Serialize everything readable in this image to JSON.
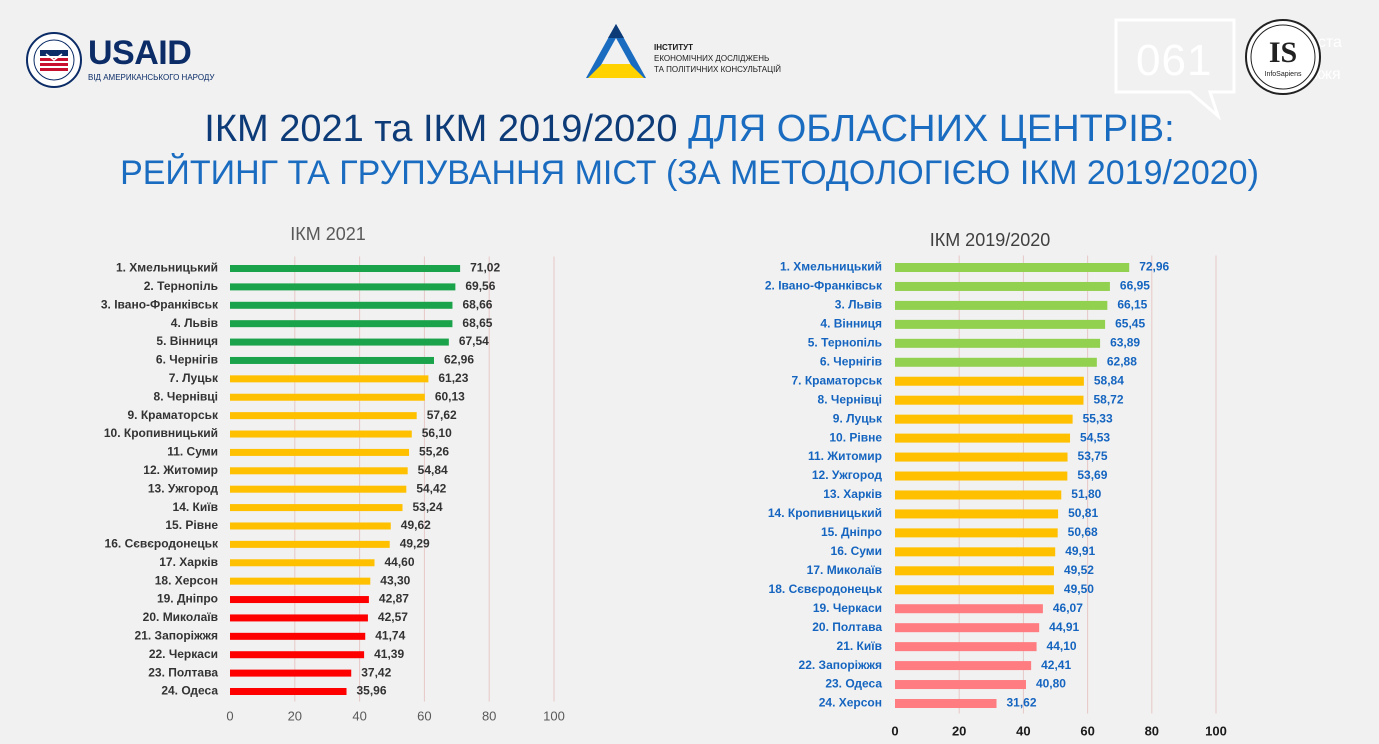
{
  "header": {
    "usaid": {
      "name": "USAID",
      "subtitle": "ВІД АМЕРИКАНСЬКОГО НАРОДУ"
    },
    "institute": {
      "line1": "ІНСТИТУТ",
      "line2": "ЕКОНОМІЧНИХ ДОСЛІДЖЕНЬ",
      "line3": "ТА ПОЛІТИЧНИХ КОНСУЛЬТАЦІЙ"
    },
    "watermark": {
      "code": "061",
      "city_line1": "Сайт міста",
      "city_line2": "Запоріжжя"
    },
    "infosapiens": {
      "mark": "IS",
      "name": "InfoSapiens"
    }
  },
  "title": {
    "line1_part1": "ІКМ 2021 та ІКМ 2019/2020 ",
    "line1_part2": "ДЛЯ ОБЛАСНИХ ЦЕНТРІВ:",
    "line2": "РЕЙТИНГ ТА ГРУПУВАННЯ МІСТ (ЗА МЕТОДОЛОГІЄЮ ІКМ 2019/2020)"
  },
  "colors": {
    "green_2021": "#1aa34a",
    "yellow_2021": "#ffc000",
    "red_2021": "#ff0000",
    "green_1920": "#92d050",
    "yellow_1920": "#ffc000",
    "red_1920": "#ff7c80",
    "label_2021": "#333333",
    "label_1920": "#1565c0",
    "grid": "#e8c8c8"
  },
  "chart_data": [
    {
      "type": "bar",
      "orientation": "horizontal",
      "title": "ІКМ 2021",
      "xlim": [
        0,
        100
      ],
      "xticks": [
        0,
        20,
        40,
        60,
        80,
        100
      ],
      "grid": true,
      "categories": [
        "1. Хмельницький",
        "2. Тернопіль",
        "3. Івано-Франківськ",
        "4. Львів",
        "5. Вінниця",
        "6. Чернігів",
        "7. Луцьк",
        "8. Чернівці",
        "9. Краматорськ",
        "10. Кропивницький",
        "11. Суми",
        "12. Житомир",
        "13. Ужгород",
        "14. Київ",
        "15. Рівне",
        "16. Сєвєродонецьк",
        "17. Харків",
        "18. Херсон",
        "19. Дніпро",
        "20. Миколаїв",
        "21. Запоріжжя",
        "22. Черкаси",
        "23. Полтава",
        "24. Одеса"
      ],
      "values": [
        71.02,
        69.56,
        68.66,
        68.65,
        67.54,
        62.96,
        61.23,
        60.13,
        57.62,
        56.1,
        55.26,
        54.84,
        54.42,
        53.24,
        49.62,
        49.29,
        44.6,
        43.3,
        42.87,
        42.57,
        41.74,
        41.39,
        37.42,
        35.96
      ],
      "value_labels": [
        "71,02",
        "69,56",
        "68,66",
        "68,65",
        "67,54",
        "62,96",
        "61,23",
        "60,13",
        "57,62",
        "56,10",
        "55,26",
        "54,84",
        "54,42",
        "53,24",
        "49,62",
        "49,29",
        "44,60",
        "43,30",
        "42,87",
        "42,57",
        "41,74",
        "41,39",
        "37,42",
        "35,96"
      ],
      "groups": [
        "green",
        "green",
        "green",
        "green",
        "green",
        "green",
        "yellow",
        "yellow",
        "yellow",
        "yellow",
        "yellow",
        "yellow",
        "yellow",
        "yellow",
        "yellow",
        "yellow",
        "yellow",
        "yellow",
        "red",
        "red",
        "red",
        "red",
        "red",
        "red"
      ]
    },
    {
      "type": "bar",
      "orientation": "horizontal",
      "title": "ІКМ 2019/2020",
      "xlim": [
        0,
        100
      ],
      "xticks": [
        0,
        20,
        40,
        60,
        80,
        100
      ],
      "grid": true,
      "categories": [
        "1. Хмельницький",
        "2. Івано-Франківськ",
        "3. Львів",
        "4. Вінниця",
        "5. Тернопіль",
        "6. Чернігів",
        "7. Краматорськ",
        "8. Чернівці",
        "9. Луцьк",
        "10. Рівне",
        "11. Житомир",
        "12. Ужгород",
        "13. Харків",
        "14. Кропивницький",
        "15. Дніпро",
        "16. Суми",
        "17. Миколаїв",
        "18. Сєвєродонецьк",
        "19. Черкаси",
        "20. Полтава",
        "21. Київ",
        "22. Запоріжжя",
        "23. Одеса",
        "24. Херсон"
      ],
      "values": [
        72.96,
        66.95,
        66.15,
        65.45,
        63.89,
        62.88,
        58.84,
        58.72,
        55.33,
        54.53,
        53.75,
        53.69,
        51.8,
        50.81,
        50.68,
        49.91,
        49.52,
        49.5,
        46.07,
        44.91,
        44.1,
        42.41,
        40.8,
        31.62
      ],
      "value_labels": [
        "72,96",
        "66,95",
        "66,15",
        "65,45",
        "63,89",
        "62,88",
        "58,84",
        "58,72",
        "55,33",
        "54,53",
        "53,75",
        "53,69",
        "51,80",
        "50,81",
        "50,68",
        "49,91",
        "49,52",
        "49,50",
        "46,07",
        "44,91",
        "44,10",
        "42,41",
        "40,80",
        "31,62"
      ],
      "groups": [
        "green",
        "green",
        "green",
        "green",
        "green",
        "green",
        "yellow",
        "yellow",
        "yellow",
        "yellow",
        "yellow",
        "yellow",
        "yellow",
        "yellow",
        "yellow",
        "yellow",
        "yellow",
        "yellow",
        "red",
        "red",
        "red",
        "red",
        "red",
        "red"
      ]
    }
  ]
}
